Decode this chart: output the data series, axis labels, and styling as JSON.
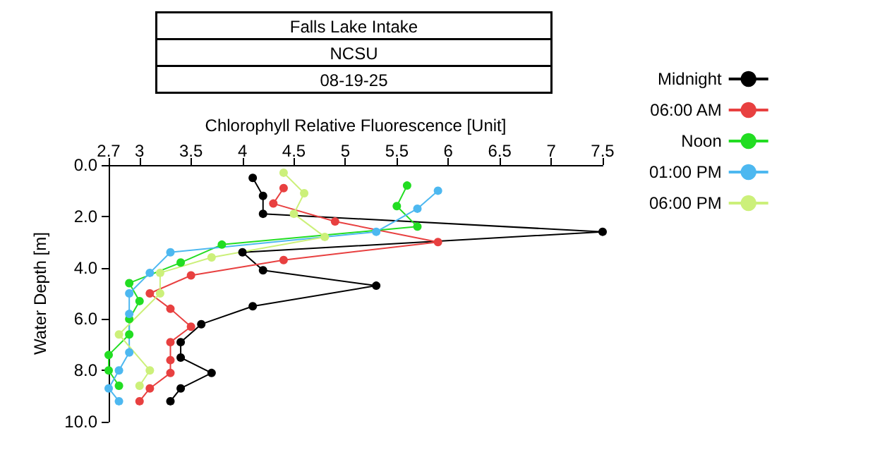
{
  "chart_data": {
    "type": "line",
    "title": "Falls Lake Intake",
    "subtitle": "NCSU",
    "annotations": [
      "08-19-25"
    ],
    "xlabel": "Chlorophyll Relative Fluorescence [Unit]",
    "ylabel": "Water Depth [m]",
    "xlim": [
      2.7,
      7.5
    ],
    "xticks": [
      2.7,
      3,
      3.5,
      4,
      4.5,
      5,
      5.5,
      6,
      6.5,
      7,
      7.5
    ],
    "ylim": [
      10,
      0
    ],
    "yticks": [
      {
        "value": 0,
        "label": "0.0"
      },
      {
        "value": 2,
        "label": "2.0"
      },
      {
        "value": 4,
        "label": "4.0"
      },
      {
        "value": 6,
        "label": "6.0"
      },
      {
        "value": 8,
        "label": "8.0"
      },
      {
        "value": 10,
        "label": "10.0"
      }
    ],
    "grid": false,
    "legend": "right",
    "marker": "circle",
    "line_style": "solid",
    "series": [
      {
        "name": "Midnight",
        "color": "#000000",
        "x": [
          4.1,
          4.2,
          4.2,
          7.5,
          4.0,
          4.2,
          5.3,
          4.1,
          3.6,
          3.4,
          3.4,
          3.7,
          3.4,
          3.3
        ],
        "values": [
          0.5,
          1.2,
          1.9,
          2.6,
          3.4,
          4.1,
          4.7,
          5.5,
          6.2,
          6.9,
          7.5,
          8.1,
          8.7,
          9.2
        ]
      },
      {
        "name": "06:00 AM",
        "color": "#e84040",
        "x": [
          4.4,
          4.3,
          4.9,
          5.9,
          4.4,
          3.5,
          3.1,
          3.3,
          3.5,
          3.3,
          3.3,
          3.3,
          3.1,
          3.0
        ],
        "values": [
          0.9,
          1.5,
          2.2,
          3.0,
          3.7,
          4.3,
          5.0,
          5.6,
          6.3,
          6.9,
          7.6,
          8.1,
          8.7,
          9.2
        ]
      },
      {
        "name": "Noon",
        "color": "#22dd22",
        "x": [
          5.6,
          5.5,
          5.7,
          3.8,
          3.4,
          2.9,
          3.0,
          2.9,
          2.9,
          2.7,
          2.7,
          2.8
        ],
        "values": [
          0.8,
          1.6,
          2.4,
          3.1,
          3.8,
          4.6,
          5.3,
          6.0,
          6.6,
          7.4,
          8.0,
          8.6
        ]
      },
      {
        "name": "01:00 PM",
        "color": "#4db8f0",
        "x": [
          5.9,
          5.7,
          5.3,
          3.3,
          3.1,
          2.9,
          2.9,
          2.9,
          2.8,
          2.7,
          2.8
        ],
        "values": [
          1.0,
          1.7,
          2.6,
          3.4,
          4.2,
          5.0,
          5.8,
          7.3,
          8.0,
          8.7,
          9.2
        ]
      },
      {
        "name": "06:00 PM",
        "color": "#ccf07a",
        "x": [
          4.4,
          4.6,
          4.5,
          4.8,
          3.7,
          3.2,
          3.2,
          2.8,
          3.1,
          3.0
        ],
        "values": [
          0.3,
          1.1,
          1.9,
          2.8,
          3.6,
          4.2,
          5.0,
          6.6,
          8.0,
          8.6
        ]
      }
    ]
  }
}
